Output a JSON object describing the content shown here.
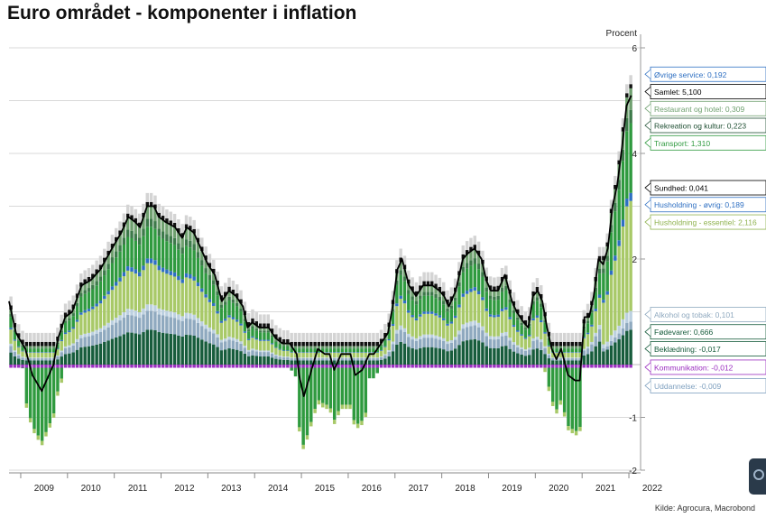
{
  "title": "Euro området - komponenter i inflation",
  "source": "Kilde: Agrocura, Macrobond",
  "colors": {
    "restaurant": "#6fa06f",
    "rekreation": "#3d7a4a",
    "transport": "#2f9a3f",
    "husholdning_ess": "#a8c968",
    "husholdning_ovrig": "#2e6fc2",
    "alkohol": "#8fa9bf",
    "fodevarer": "#175c3c",
    "kommunikation": "#9b2fc0",
    "uddannelse": "#bcd0e0",
    "samlet": "#000000"
  },
  "chart_data": {
    "type": "bar",
    "stacked": true,
    "ylabel": "Procent",
    "ylim": [
      -2,
      6
    ],
    "yticks": [
      -2,
      -1,
      2,
      4,
      6
    ],
    "y_axis_side": "right",
    "grid": true,
    "x_start": 2008.75,
    "x_end": 2022.25,
    "xticks": [
      "2009",
      "2010",
      "2011",
      "2012",
      "2013",
      "2014",
      "2015",
      "2016",
      "2017",
      "2018",
      "2019",
      "2020",
      "2021",
      "2022"
    ],
    "samlet": [
      [
        2008.75,
        1.2
      ],
      [
        2008.9,
        0.6
      ],
      [
        2009.1,
        0.3
      ],
      [
        2009.25,
        -0.2
      ],
      [
        2009.45,
        -0.5
      ],
      [
        2009.55,
        -0.3
      ],
      [
        2009.7,
        0.0
      ],
      [
        2009.8,
        0.5
      ],
      [
        2009.95,
        0.9
      ],
      [
        2010.1,
        1.0
      ],
      [
        2010.3,
        1.5
      ],
      [
        2010.5,
        1.6
      ],
      [
        2010.7,
        1.8
      ],
      [
        2010.95,
        2.2
      ],
      [
        2011.15,
        2.5
      ],
      [
        2011.3,
        2.8
      ],
      [
        2011.45,
        2.7
      ],
      [
        2011.55,
        2.6
      ],
      [
        2011.7,
        3.0
      ],
      [
        2011.85,
        3.0
      ],
      [
        2011.95,
        2.8
      ],
      [
        2012.1,
        2.7
      ],
      [
        2012.3,
        2.6
      ],
      [
        2012.45,
        2.4
      ],
      [
        2012.55,
        2.6
      ],
      [
        2012.7,
        2.5
      ],
      [
        2012.85,
        2.2
      ],
      [
        2013.0,
        1.9
      ],
      [
        2013.15,
        1.7
      ],
      [
        2013.3,
        1.2
      ],
      [
        2013.45,
        1.4
      ],
      [
        2013.6,
        1.3
      ],
      [
        2013.75,
        1.1
      ],
      [
        2013.85,
        0.7
      ],
      [
        2013.95,
        0.8
      ],
      [
        2014.1,
        0.7
      ],
      [
        2014.3,
        0.7
      ],
      [
        2014.45,
        0.5
      ],
      [
        2014.6,
        0.4
      ],
      [
        2014.75,
        0.4
      ],
      [
        2014.9,
        0.2
      ],
      [
        2014.95,
        -0.2
      ],
      [
        2015.05,
        -0.6
      ],
      [
        2015.15,
        -0.3
      ],
      [
        2015.25,
        0.0
      ],
      [
        2015.35,
        0.3
      ],
      [
        2015.5,
        0.2
      ],
      [
        2015.6,
        0.2
      ],
      [
        2015.7,
        -0.1
      ],
      [
        2015.85,
        0.2
      ],
      [
        2015.95,
        0.2
      ],
      [
        2016.05,
        0.2
      ],
      [
        2016.15,
        -0.2
      ],
      [
        2016.3,
        -0.1
      ],
      [
        2016.45,
        0.2
      ],
      [
        2016.55,
        0.2
      ],
      [
        2016.7,
        0.4
      ],
      [
        2016.85,
        0.6
      ],
      [
        2016.95,
        1.1
      ],
      [
        2017.05,
        1.8
      ],
      [
        2017.15,
        2.0
      ],
      [
        2017.3,
        1.5
      ],
      [
        2017.45,
        1.3
      ],
      [
        2017.6,
        1.5
      ],
      [
        2017.8,
        1.5
      ],
      [
        2017.95,
        1.4
      ],
      [
        2018.05,
        1.3
      ],
      [
        2018.15,
        1.1
      ],
      [
        2018.3,
        1.4
      ],
      [
        2018.45,
        2.0
      ],
      [
        2018.55,
        2.1
      ],
      [
        2018.7,
        2.2
      ],
      [
        2018.85,
        2.0
      ],
      [
        2018.95,
        1.6
      ],
      [
        2019.05,
        1.4
      ],
      [
        2019.2,
        1.4
      ],
      [
        2019.35,
        1.7
      ],
      [
        2019.5,
        1.2
      ],
      [
        2019.6,
        1.0
      ],
      [
        2019.75,
        0.8
      ],
      [
        2019.85,
        0.7
      ],
      [
        2019.95,
        1.3
      ],
      [
        2020.05,
        1.4
      ],
      [
        2020.15,
        1.2
      ],
      [
        2020.25,
        0.7
      ],
      [
        2020.35,
        0.3
      ],
      [
        2020.45,
        0.1
      ],
      [
        2020.55,
        0.3
      ],
      [
        2020.7,
        -0.2
      ],
      [
        2020.85,
        -0.3
      ],
      [
        2020.95,
        -0.3
      ],
      [
        2021.05,
        0.9
      ],
      [
        2021.15,
        0.9
      ],
      [
        2021.25,
        1.3
      ],
      [
        2021.35,
        2.0
      ],
      [
        2021.45,
        1.9
      ],
      [
        2021.55,
        2.2
      ],
      [
        2021.65,
        3.0
      ],
      [
        2021.75,
        3.4
      ],
      [
        2021.85,
        4.1
      ],
      [
        2021.95,
        4.9
      ],
      [
        2022.05,
        5.1
      ]
    ],
    "components": [
      {
        "key": "kommunikation",
        "name": "Kommunikation",
        "value": -0.012
      },
      {
        "key": "uddannelse",
        "name": "Uddannelse",
        "value": -0.009
      },
      {
        "key": "fodevarer",
        "name": "Fødevarer",
        "value": 0.666
      },
      {
        "key": "alkohol",
        "name": "Alkohol og tobak",
        "value": 0.101
      },
      {
        "key": "husholdning_ess",
        "name": "Husholdning - essentiel",
        "value": 2.116
      },
      {
        "key": "husholdning_ovrig",
        "name": "Husholdning - øvrig",
        "value": 0.189
      },
      {
        "key": "transport",
        "name": "Transport",
        "value": 1.31
      },
      {
        "key": "rekreation",
        "name": "Rekreation og kultur",
        "value": 0.223
      },
      {
        "key": "restaurant",
        "name": "Restaurant og hotel",
        "value": 0.309
      },
      {
        "key": "ovrige",
        "name": "Øvrige service",
        "value": 0.192
      }
    ],
    "labels": [
      {
        "text": "Øvrige service: 0,192",
        "color": "#2e6fc2",
        "y": 5.5
      },
      {
        "text": "Samlet: 5,100",
        "color": "#000000",
        "y": 5.17
      },
      {
        "text": "Restaurant og hotel: 0,309",
        "color": "#6fa06f",
        "y": 4.85
      },
      {
        "text": "Rekreation og kultur: 0,223",
        "color": "#1f4f33",
        "y": 4.53
      },
      {
        "text": "Transport: 1,310",
        "color": "#2f9a3f",
        "y": 4.2
      },
      {
        "text": "Sundhed: 0,041",
        "color": "#000000",
        "y": 3.35
      },
      {
        "text": "Husholdning - øvrig: 0,189",
        "color": "#2e6fc2",
        "y": 3.03
      },
      {
        "text": "Husholdning - essentiel: 2,116",
        "color": "#8fb24f",
        "y": 2.7
      },
      {
        "text": "Alkohol og tobak: 0,101",
        "color": "#8fa9bf",
        "y": 0.95
      },
      {
        "text": "Fødevarer: 0,666",
        "color": "#175c3c",
        "y": 0.62
      },
      {
        "text": "Beklædning: -0,017",
        "color": "#175c3c",
        "y": 0.3
      },
      {
        "text": "Kommunikation: -0,012",
        "color": "#9b2fc0",
        "y": -0.05
      },
      {
        "text": "Uddannelse: -0,009",
        "color": "#7fa0bf",
        "y": -0.4
      }
    ]
  }
}
